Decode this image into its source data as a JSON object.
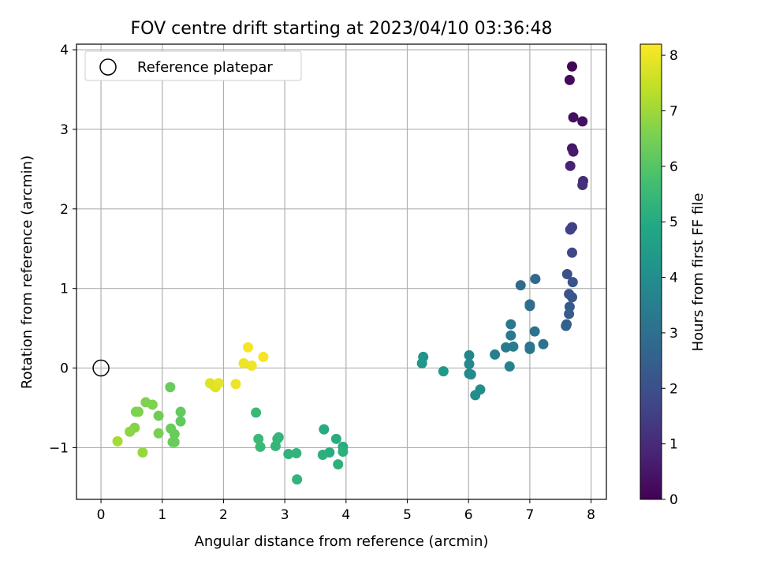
{
  "chart_data": {
    "type": "scatter",
    "title": "FOV centre drift starting at 2023/04/10 03:36:48",
    "xlabel": "Angular distance from reference (arcmin)",
    "ylabel": "Rotation from reference (arcmin)",
    "xlim": [
      -0.4,
      8.25
    ],
    "ylim": [
      -1.65,
      4.07
    ],
    "xticks": [
      0,
      1,
      2,
      3,
      4,
      5,
      6,
      7,
      8
    ],
    "yticks": [
      -1,
      0,
      1,
      2,
      3,
      4
    ],
    "xtick_labels": [
      "0",
      "1",
      "2",
      "3",
      "4",
      "5",
      "6",
      "7",
      "8"
    ],
    "ytick_labels": [
      "−1",
      "0",
      "1",
      "2",
      "3",
      "4"
    ],
    "grid": true,
    "legend": {
      "placement": "top-left",
      "entries": [
        "Reference platepar"
      ]
    },
    "reference_point": {
      "x": 0,
      "y": 0
    },
    "colorbar": {
      "label": "Hours from first FF file",
      "colormap": "viridis",
      "range": [
        0,
        8.2
      ],
      "ticks": [
        0,
        1,
        2,
        3,
        4,
        5,
        6,
        7,
        8
      ],
      "tick_labels": [
        "0",
        "1",
        "2",
        "3",
        "4",
        "5",
        "6",
        "7",
        "8"
      ]
    },
    "points": [
      {
        "x": 7.69,
        "y": 3.79,
        "h": 0.1
      },
      {
        "x": 7.65,
        "y": 3.62,
        "h": 0.2
      },
      {
        "x": 7.71,
        "y": 3.15,
        "h": 0.3
      },
      {
        "x": 7.86,
        "y": 3.1,
        "h": 0.3
      },
      {
        "x": 7.69,
        "y": 2.76,
        "h": 0.5
      },
      {
        "x": 7.71,
        "y": 2.72,
        "h": 0.6
      },
      {
        "x": 7.66,
        "y": 2.54,
        "h": 0.8
      },
      {
        "x": 7.87,
        "y": 2.35,
        "h": 1.0
      },
      {
        "x": 7.86,
        "y": 2.3,
        "h": 1.1
      },
      {
        "x": 7.69,
        "y": 1.77,
        "h": 1.5
      },
      {
        "x": 7.66,
        "y": 1.74,
        "h": 1.6
      },
      {
        "x": 7.69,
        "y": 1.45,
        "h": 1.8
      },
      {
        "x": 7.61,
        "y": 1.18,
        "h": 2.0
      },
      {
        "x": 7.7,
        "y": 1.08,
        "h": 2.1
      },
      {
        "x": 7.64,
        "y": 0.93,
        "h": 2.1
      },
      {
        "x": 7.69,
        "y": 0.89,
        "h": 2.2
      },
      {
        "x": 7.65,
        "y": 0.77,
        "h": 2.3
      },
      {
        "x": 7.64,
        "y": 0.68,
        "h": 2.4
      },
      {
        "x": 7.6,
        "y": 0.55,
        "h": 2.5
      },
      {
        "x": 7.59,
        "y": 0.53,
        "h": 2.5
      },
      {
        "x": 7.09,
        "y": 1.12,
        "h": 2.8
      },
      {
        "x": 6.85,
        "y": 1.04,
        "h": 2.9
      },
      {
        "x": 7.0,
        "y": 0.8,
        "h": 3.0
      },
      {
        "x": 7.0,
        "y": 0.78,
        "h": 3.0
      },
      {
        "x": 7.08,
        "y": 0.46,
        "h": 3.1
      },
      {
        "x": 7.22,
        "y": 0.3,
        "h": 3.1
      },
      {
        "x": 7.0,
        "y": 0.27,
        "h": 3.2
      },
      {
        "x": 7.0,
        "y": 0.24,
        "h": 3.2
      },
      {
        "x": 6.69,
        "y": 0.55,
        "h": 3.3
      },
      {
        "x": 6.69,
        "y": 0.41,
        "h": 3.3
      },
      {
        "x": 6.73,
        "y": 0.27,
        "h": 3.4
      },
      {
        "x": 6.61,
        "y": 0.26,
        "h": 3.4
      },
      {
        "x": 6.43,
        "y": 0.17,
        "h": 3.5
      },
      {
        "x": 6.67,
        "y": 0.02,
        "h": 3.6
      },
      {
        "x": 6.01,
        "y": 0.16,
        "h": 3.7
      },
      {
        "x": 6.01,
        "y": 0.05,
        "h": 3.8
      },
      {
        "x": 6.01,
        "y": -0.07,
        "h": 3.8
      },
      {
        "x": 6.04,
        "y": -0.08,
        "h": 3.9
      },
      {
        "x": 6.19,
        "y": -0.27,
        "h": 4.0
      },
      {
        "x": 6.11,
        "y": -0.34,
        "h": 4.0
      },
      {
        "x": 5.26,
        "y": 0.14,
        "h": 4.2
      },
      {
        "x": 5.24,
        "y": 0.06,
        "h": 4.3
      },
      {
        "x": 5.59,
        "y": -0.04,
        "h": 4.4
      },
      {
        "x": 3.64,
        "y": -0.77,
        "h": 5.0
      },
      {
        "x": 3.84,
        "y": -0.89,
        "h": 5.1
      },
      {
        "x": 3.95,
        "y": -0.99,
        "h": 5.1
      },
      {
        "x": 3.95,
        "y": -1.05,
        "h": 5.2
      },
      {
        "x": 3.73,
        "y": -1.06,
        "h": 5.1
      },
      {
        "x": 3.62,
        "y": -1.09,
        "h": 5.2
      },
      {
        "x": 3.87,
        "y": -1.21,
        "h": 5.2
      },
      {
        "x": 3.19,
        "y": -1.07,
        "h": 5.3
      },
      {
        "x": 3.06,
        "y": -1.08,
        "h": 5.3
      },
      {
        "x": 3.2,
        "y": -1.4,
        "h": 5.3
      },
      {
        "x": 2.9,
        "y": -0.87,
        "h": 5.3
      },
      {
        "x": 2.88,
        "y": -0.89,
        "h": 5.4
      },
      {
        "x": 2.85,
        "y": -0.98,
        "h": 5.4
      },
      {
        "x": 2.57,
        "y": -0.89,
        "h": 5.5
      },
      {
        "x": 2.6,
        "y": -0.99,
        "h": 5.5
      },
      {
        "x": 2.53,
        "y": -0.56,
        "h": 5.5
      },
      {
        "x": 1.13,
        "y": -0.24,
        "h": 6.3
      },
      {
        "x": 1.3,
        "y": -0.55,
        "h": 6.2
      },
      {
        "x": 1.3,
        "y": -0.67,
        "h": 6.2
      },
      {
        "x": 1.14,
        "y": -0.76,
        "h": 6.3
      },
      {
        "x": 1.2,
        "y": -0.83,
        "h": 6.3
      },
      {
        "x": 1.2,
        "y": -0.93,
        "h": 6.3
      },
      {
        "x": 1.17,
        "y": -0.93,
        "h": 6.3
      },
      {
        "x": 0.94,
        "y": -0.6,
        "h": 6.4
      },
      {
        "x": 0.94,
        "y": -0.82,
        "h": 6.5
      },
      {
        "x": 0.73,
        "y": -0.43,
        "h": 6.6
      },
      {
        "x": 0.84,
        "y": -0.46,
        "h": 6.6
      },
      {
        "x": 0.57,
        "y": -0.55,
        "h": 6.6
      },
      {
        "x": 0.61,
        "y": -0.55,
        "h": 6.6
      },
      {
        "x": 0.55,
        "y": -0.75,
        "h": 6.7
      },
      {
        "x": 0.47,
        "y": -0.8,
        "h": 6.8
      },
      {
        "x": 0.68,
        "y": -1.06,
        "h": 6.9
      },
      {
        "x": 0.27,
        "y": -0.92,
        "h": 7.1
      },
      {
        "x": 1.78,
        "y": -0.19,
        "h": 7.8
      },
      {
        "x": 1.84,
        "y": -0.22,
        "h": 7.8
      },
      {
        "x": 1.87,
        "y": -0.24,
        "h": 7.8
      },
      {
        "x": 1.92,
        "y": -0.19,
        "h": 7.9
      },
      {
        "x": 2.2,
        "y": -0.2,
        "h": 8.0
      },
      {
        "x": 2.33,
        "y": 0.06,
        "h": 8.0
      },
      {
        "x": 2.46,
        "y": 0.03,
        "h": 8.0
      },
      {
        "x": 2.4,
        "y": 0.26,
        "h": 8.1
      },
      {
        "x": 2.65,
        "y": 0.14,
        "h": 8.1
      }
    ]
  }
}
